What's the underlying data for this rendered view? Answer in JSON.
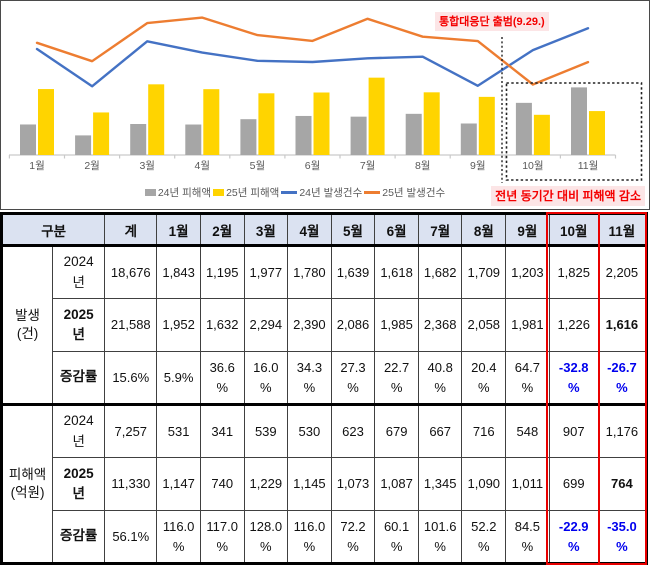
{
  "colors": {
    "bar_gray": "#a6a6a6",
    "bar_yellow": "#ffd400",
    "line_blue": "#4472c4",
    "line_orange": "#ed7d31",
    "accent_red": "#e80000",
    "annot_red_text": "#f40000",
    "annot_pink_bg": "#fce5e6",
    "blue_text": "#0000ee",
    "header_bg": "#dbe2f1",
    "axis_gray": "#c9c9c9",
    "label_gray": "#595959"
  },
  "chart_data": {
    "type": "bar+line",
    "categories": [
      "1월",
      "2월",
      "3월",
      "4월",
      "5월",
      "6월",
      "7월",
      "8월",
      "9월",
      "10월",
      "11월"
    ],
    "series": [
      {
        "name": "24년 피해액",
        "type": "bar",
        "color": "bar_gray",
        "values": [
          531,
          341,
          539,
          530,
          623,
          679,
          667,
          716,
          548,
          907,
          1176
        ]
      },
      {
        "name": "25년 피해액",
        "type": "bar",
        "color": "bar_yellow",
        "values": [
          1147,
          740,
          1229,
          1145,
          1073,
          1087,
          1345,
          1090,
          1011,
          699,
          764
        ]
      },
      {
        "name": "24년 발생건수",
        "type": "line",
        "color": "line_blue",
        "values": [
          1843,
          1195,
          1977,
          1780,
          1639,
          1618,
          1682,
          1709,
          1203,
          1825,
          2205
        ]
      },
      {
        "name": "25년 발생건수",
        "type": "line",
        "color": "line_orange",
        "values": [
          1952,
          1632,
          2294,
          2390,
          2086,
          1985,
          2368,
          2058,
          1981,
          1226,
          1616
        ]
      }
    ],
    "ylim": [
      0,
      2600
    ],
    "legend_position": "bottom-center",
    "grid": false,
    "annotations": {
      "top": "통합대응단 출범(9.29.)",
      "bottom": "전년 동기간 대비 피해액 감소",
      "highlight_months": [
        "10월",
        "11월"
      ]
    }
  },
  "table": {
    "header": [
      "구분",
      "계",
      "1월",
      "2월",
      "3월",
      "4월",
      "5월",
      "6월",
      "7월",
      "8월",
      "9월",
      "10월",
      "11월"
    ],
    "groups": [
      {
        "label": "발생\n(건)",
        "rows": [
          {
            "label": "2024\n년",
            "bold": false,
            "cells": [
              {
                "t": "18,676"
              },
              {
                "t": "1,843"
              },
              {
                "t": "1,195"
              },
              {
                "t": "1,977"
              },
              {
                "t": "1,780"
              },
              {
                "t": "1,639"
              },
              {
                "t": "1,618"
              },
              {
                "t": "1,682"
              },
              {
                "t": "1,709"
              },
              {
                "t": "1,203"
              },
              {
                "t": "1,825"
              },
              {
                "t": "2,205"
              }
            ]
          },
          {
            "label": "2025\n년",
            "bold": true,
            "cells": [
              {
                "t": "21,588"
              },
              {
                "t": "1,952"
              },
              {
                "t": "1,632"
              },
              {
                "t": "2,294"
              },
              {
                "t": "2,390"
              },
              {
                "t": "2,086"
              },
              {
                "t": "1,985"
              },
              {
                "t": "2,368"
              },
              {
                "t": "2,058"
              },
              {
                "t": "1,981"
              },
              {
                "t": "1,226"
              },
              {
                "t": "1,616",
                "b": true
              }
            ]
          },
          {
            "label": "증감률",
            "bold": true,
            "cells": [
              {
                "t": "15.6%"
              },
              {
                "t": "5.9%"
              },
              {
                "t": "36.6\n%"
              },
              {
                "t": "16.0\n%"
              },
              {
                "t": "34.3\n%"
              },
              {
                "t": "27.3\n%"
              },
              {
                "t": "22.7\n%"
              },
              {
                "t": "40.8\n%"
              },
              {
                "t": "20.4\n%"
              },
              {
                "t": "64.7\n%"
              },
              {
                "t": "-32.8\n%",
                "c": "blue",
                "b": true
              },
              {
                "t": "-26.7\n%",
                "c": "blue",
                "b": true
              }
            ]
          }
        ]
      },
      {
        "label": "피해액\n(억원)",
        "rows": [
          {
            "label": "2024\n년",
            "bold": false,
            "cells": [
              {
                "t": "7,257"
              },
              {
                "t": "531"
              },
              {
                "t": "341"
              },
              {
                "t": "539"
              },
              {
                "t": "530"
              },
              {
                "t": "623"
              },
              {
                "t": "679"
              },
              {
                "t": "667"
              },
              {
                "t": "716"
              },
              {
                "t": "548"
              },
              {
                "t": "907"
              },
              {
                "t": "1,176"
              }
            ]
          },
          {
            "label": "2025\n년",
            "bold": true,
            "cells": [
              {
                "t": "11,330"
              },
              {
                "t": "1,147"
              },
              {
                "t": "740"
              },
              {
                "t": "1,229"
              },
              {
                "t": "1,145"
              },
              {
                "t": "1,073"
              },
              {
                "t": "1,087"
              },
              {
                "t": "1,345"
              },
              {
                "t": "1,090"
              },
              {
                "t": "1,011"
              },
              {
                "t": "699"
              },
              {
                "t": "764",
                "b": true
              }
            ]
          },
          {
            "label": "증감률",
            "bold": true,
            "cells": [
              {
                "t": "56.1%"
              },
              {
                "t": "116.0\n%"
              },
              {
                "t": "117.0\n%"
              },
              {
                "t": "128.0\n%"
              },
              {
                "t": "116.0\n%"
              },
              {
                "t": "72.2\n%"
              },
              {
                "t": "60.1\n%"
              },
              {
                "t": "101.6\n%"
              },
              {
                "t": "52.2\n%"
              },
              {
                "t": "84.5\n%"
              },
              {
                "t": "-22.9\n%",
                "c": "blue",
                "b": true
              },
              {
                "t": "-35.0\n%",
                "c": "blue",
                "b": true
              }
            ]
          }
        ]
      }
    ]
  }
}
